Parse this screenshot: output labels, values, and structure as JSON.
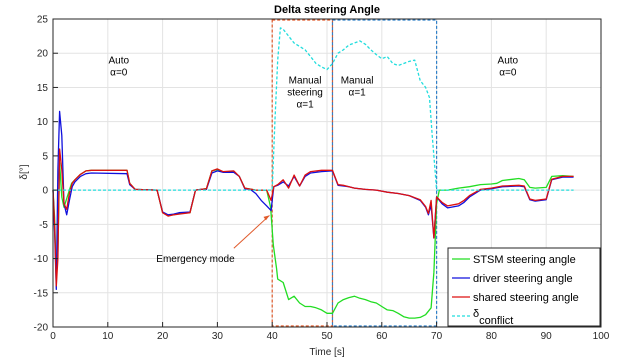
{
  "chart_data": {
    "type": "line",
    "title": "Delta steering Angle",
    "xlabel": "Time [s]",
    "ylabel": "δ[°]",
    "xlim": [
      0,
      100
    ],
    "ylim": [
      -20,
      25
    ],
    "x_ticks": [
      0,
      10,
      20,
      30,
      40,
      50,
      60,
      70,
      80,
      90,
      100
    ],
    "y_ticks": [
      -20,
      -15,
      -10,
      -5,
      0,
      5,
      10,
      15,
      20,
      25
    ],
    "grid": true,
    "legend_position": "bottom-right",
    "series": [
      {
        "name": "STSM steering angle",
        "color": "#22dd22",
        "dash": "solid",
        "points": [
          [
            0,
            0
          ],
          [
            0.3,
            -4
          ],
          [
            0.6,
            -13
          ],
          [
            0.9,
            -9
          ],
          [
            1.2,
            4
          ],
          [
            1.6,
            -1
          ],
          [
            2,
            -2.5
          ],
          [
            2.6,
            -1
          ],
          [
            3,
            0
          ],
          [
            3.4,
            1
          ],
          [
            4,
            1.5
          ],
          [
            5,
            2.3
          ],
          [
            6,
            2.8
          ],
          [
            7,
            2.9
          ],
          [
            13.5,
            2.9
          ],
          [
            14,
            1
          ],
          [
            15,
            0.1
          ],
          [
            19,
            0
          ],
          [
            20,
            -3.3
          ],
          [
            21,
            -3.7
          ],
          [
            22,
            -3.6
          ],
          [
            23,
            -3.4
          ],
          [
            25,
            -3.3
          ],
          [
            26,
            0
          ],
          [
            27,
            0.1
          ],
          [
            28,
            0.2
          ],
          [
            29,
            2.8
          ],
          [
            30,
            3
          ],
          [
            31,
            2.7
          ],
          [
            33,
            2.7
          ],
          [
            34,
            2
          ],
          [
            35,
            0.3
          ],
          [
            37,
            0
          ],
          [
            39,
            0
          ],
          [
            39.7,
            -2.5
          ],
          [
            40.2,
            -8
          ],
          [
            40.8,
            -11.5
          ],
          [
            41,
            -13
          ],
          [
            42,
            -13.5
          ],
          [
            43,
            -16
          ],
          [
            44,
            -15.5
          ],
          [
            45,
            -16.5
          ],
          [
            46,
            -17
          ],
          [
            47,
            -17
          ],
          [
            48,
            -17.2
          ],
          [
            49,
            -17.5
          ],
          [
            50,
            -18
          ],
          [
            51,
            -18
          ],
          [
            52,
            -16.5
          ],
          [
            53,
            -16
          ],
          [
            54,
            -15.7
          ],
          [
            55,
            -15.5
          ],
          [
            56,
            -15.8
          ],
          [
            57,
            -16
          ],
          [
            58,
            -16.3
          ],
          [
            59,
            -16.5
          ],
          [
            60,
            -17
          ],
          [
            61,
            -17.5
          ],
          [
            62,
            -17.6
          ],
          [
            63,
            -18
          ],
          [
            64,
            -18.5
          ],
          [
            65,
            -18.7
          ],
          [
            66,
            -18.7
          ],
          [
            67,
            -18.6
          ],
          [
            68,
            -18.2
          ],
          [
            69,
            -17.2
          ],
          [
            69.5,
            -12
          ],
          [
            70,
            -2
          ],
          [
            70.5,
            0
          ],
          [
            72,
            0
          ],
          [
            74,
            0.3
          ],
          [
            76,
            0.5
          ],
          [
            78,
            0.8
          ],
          [
            80,
            0.9
          ],
          [
            81,
            1
          ],
          [
            82,
            1.4
          ],
          [
            84,
            1.6
          ],
          [
            85,
            1.7
          ],
          [
            86,
            1.5
          ],
          [
            87,
            0.4
          ],
          [
            88,
            0.3
          ],
          [
            90,
            0.4
          ],
          [
            91,
            2
          ],
          [
            93,
            2.1
          ],
          [
            95,
            2
          ]
        ]
      },
      {
        "name": "driver steering angle",
        "color": "#1010dd",
        "dash": "solid",
        "points": [
          [
            0,
            0
          ],
          [
            0.3,
            -6
          ],
          [
            0.6,
            -14.5
          ],
          [
            0.9,
            3
          ],
          [
            1.2,
            11.5
          ],
          [
            1.6,
            8
          ],
          [
            2,
            -2
          ],
          [
            2.5,
            -3.6
          ],
          [
            3,
            -1.5
          ],
          [
            3.5,
            0.5
          ],
          [
            4,
            1.2
          ],
          [
            5,
            2
          ],
          [
            6,
            2.4
          ],
          [
            7,
            2.5
          ],
          [
            13.5,
            2.4
          ],
          [
            14,
            0.8
          ],
          [
            15,
            0.1
          ],
          [
            19,
            0
          ],
          [
            20,
            -3.2
          ],
          [
            21,
            -3.6
          ],
          [
            22,
            -3.5
          ],
          [
            23,
            -3.3
          ],
          [
            25,
            -3.2
          ],
          [
            26,
            0
          ],
          [
            27,
            0.1
          ],
          [
            28,
            0.1
          ],
          [
            29,
            2.5
          ],
          [
            30,
            2.8
          ],
          [
            31,
            2.6
          ],
          [
            33,
            2.6
          ],
          [
            34,
            2
          ],
          [
            35,
            0.2
          ],
          [
            36,
            0.1
          ],
          [
            37,
            -0.5
          ],
          [
            38,
            -1.5
          ],
          [
            39,
            -2.3
          ],
          [
            39.8,
            -3
          ],
          [
            40,
            -1.5
          ],
          [
            40.3,
            0.5
          ],
          [
            41,
            0.7
          ],
          [
            42,
            1.2
          ],
          [
            43,
            0.6
          ],
          [
            44,
            2
          ],
          [
            45,
            0.6
          ],
          [
            46,
            2
          ],
          [
            47,
            2.5
          ],
          [
            49,
            2.7
          ],
          [
            51,
            2.8
          ],
          [
            52,
            0.7
          ],
          [
            53,
            0.6
          ],
          [
            54,
            0.5
          ],
          [
            55,
            0.3
          ],
          [
            57,
            0.1
          ],
          [
            59,
            0
          ],
          [
            61,
            -0.3
          ],
          [
            63,
            -0.5
          ],
          [
            65,
            -0.8
          ],
          [
            67,
            -1.5
          ],
          [
            68,
            -2.5
          ],
          [
            68.5,
            -3.6
          ],
          [
            69,
            -2.2
          ],
          [
            69.5,
            -7
          ],
          [
            70,
            -1
          ],
          [
            71,
            -2
          ],
          [
            72,
            -2.6
          ],
          [
            74,
            -2.3
          ],
          [
            75,
            -1.8
          ],
          [
            76,
            -1
          ],
          [
            78,
            0
          ],
          [
            80,
            0.2
          ],
          [
            82,
            0.5
          ],
          [
            85,
            0.6
          ],
          [
            86,
            0.5
          ],
          [
            87,
            -1.4
          ],
          [
            88,
            -1.6
          ],
          [
            90,
            -1.4
          ],
          [
            91,
            1.5
          ],
          [
            93,
            1.9
          ],
          [
            95,
            1.9
          ]
        ]
      },
      {
        "name": "shared steering angle",
        "color": "#dd1010",
        "dash": "solid",
        "points": [
          [
            0,
            0
          ],
          [
            0.3,
            -5
          ],
          [
            0.6,
            -14
          ],
          [
            0.9,
            -10
          ],
          [
            1.2,
            6
          ],
          [
            1.6,
            3
          ],
          [
            2,
            -2
          ],
          [
            2.5,
            -2.8
          ],
          [
            3,
            -0.5
          ],
          [
            3.5,
            1
          ],
          [
            4,
            1.5
          ],
          [
            5,
            2.3
          ],
          [
            6,
            2.8
          ],
          [
            7,
            2.9
          ],
          [
            13.5,
            2.9
          ],
          [
            14,
            1
          ],
          [
            15,
            0.1
          ],
          [
            19,
            0
          ],
          [
            20,
            -3.3
          ],
          [
            21,
            -3.8
          ],
          [
            22,
            -3.6
          ],
          [
            23,
            -3.5
          ],
          [
            25,
            -3.3
          ],
          [
            26,
            0
          ],
          [
            27,
            0.1
          ],
          [
            28,
            0.2
          ],
          [
            29,
            2.8
          ],
          [
            30,
            3.1
          ],
          [
            31,
            2.7
          ],
          [
            33,
            2.8
          ],
          [
            34,
            2
          ],
          [
            35,
            0.3
          ],
          [
            37,
            0
          ],
          [
            39,
            0
          ],
          [
            39.8,
            -1.5
          ],
          [
            40.3,
            0.5
          ],
          [
            41,
            0.8
          ],
          [
            42,
            1.5
          ],
          [
            43,
            0.3
          ],
          [
            44,
            2.2
          ],
          [
            45,
            0.6
          ],
          [
            46,
            2.2
          ],
          [
            47,
            2.7
          ],
          [
            49,
            2.9
          ],
          [
            51,
            2.9
          ],
          [
            52,
            0.8
          ],
          [
            53,
            0.7
          ],
          [
            54,
            0.5
          ],
          [
            55,
            0.3
          ],
          [
            57,
            0.1
          ],
          [
            59,
            0
          ],
          [
            61,
            -0.3
          ],
          [
            63,
            -0.5
          ],
          [
            65,
            -0.8
          ],
          [
            67,
            -1.4
          ],
          [
            68,
            -2.4
          ],
          [
            68.5,
            -3.4
          ],
          [
            69,
            -1.5
          ],
          [
            69.5,
            -7
          ],
          [
            70,
            -1
          ],
          [
            71,
            -1.8
          ],
          [
            72,
            -2.3
          ],
          [
            74,
            -2
          ],
          [
            75,
            -1.5
          ],
          [
            76,
            -0.8
          ],
          [
            78,
            0.1
          ],
          [
            80,
            0.3
          ],
          [
            82,
            0.6
          ],
          [
            85,
            0.7
          ],
          [
            86,
            0.6
          ],
          [
            87,
            -1.3
          ],
          [
            88,
            -1.5
          ],
          [
            90,
            -1.3
          ],
          [
            91,
            1.6
          ],
          [
            93,
            2
          ],
          [
            95,
            2
          ]
        ]
      },
      {
        "name": "δconflict",
        "color": "#22dddd",
        "dash": "dashed",
        "points": [
          [
            0,
            0
          ],
          [
            40,
            0
          ],
          [
            40.5,
            10
          ],
          [
            41,
            19
          ],
          [
            41.5,
            23.7
          ],
          [
            42,
            23.5
          ],
          [
            43,
            22.5
          ],
          [
            44,
            21.5
          ],
          [
            45,
            21
          ],
          [
            46,
            20.5
          ],
          [
            47,
            19.5
          ],
          [
            48,
            18.5
          ],
          [
            49,
            18
          ],
          [
            50,
            17.6
          ],
          [
            51,
            18.5
          ],
          [
            52,
            20
          ],
          [
            53,
            20.5
          ],
          [
            54,
            21.2
          ],
          [
            55,
            21.5
          ],
          [
            56,
            21.8
          ],
          [
            57,
            21.3
          ],
          [
            58,
            20.5
          ],
          [
            59,
            19.8
          ],
          [
            60,
            19.2
          ],
          [
            61,
            19.5
          ],
          [
            62,
            18.5
          ],
          [
            63,
            18.2
          ],
          [
            64,
            18.5
          ],
          [
            65,
            18.8
          ],
          [
            66,
            19
          ],
          [
            67,
            16
          ],
          [
            68,
            15
          ],
          [
            68.7,
            13.5
          ],
          [
            69.2,
            8
          ],
          [
            69.7,
            3
          ],
          [
            70,
            0
          ],
          [
            95,
            0
          ]
        ]
      }
    ],
    "annotations": [
      {
        "lines": [
          "Auto",
          "α=0"
        ],
        "x": 12,
        "y": 18.5
      },
      {
        "lines": [
          "Auto",
          "α=0"
        ],
        "x": 83,
        "y": 18.5
      },
      {
        "lines": [
          "Manual",
          "steering",
          "α=1"
        ],
        "x": 46,
        "y": 15.6
      },
      {
        "lines": [
          "Manual",
          "α=1"
        ],
        "x": 55.5,
        "y": 15.6
      },
      {
        "lines": [
          "Emergency mode"
        ],
        "x": 26,
        "y": -10.5,
        "color": "#e05a2b"
      }
    ],
    "regions": [
      {
        "x0": 40,
        "x1": 51,
        "color": "#e05a2b"
      },
      {
        "x0": 51,
        "x1": 70,
        "color": "#3080c8"
      }
    ]
  }
}
